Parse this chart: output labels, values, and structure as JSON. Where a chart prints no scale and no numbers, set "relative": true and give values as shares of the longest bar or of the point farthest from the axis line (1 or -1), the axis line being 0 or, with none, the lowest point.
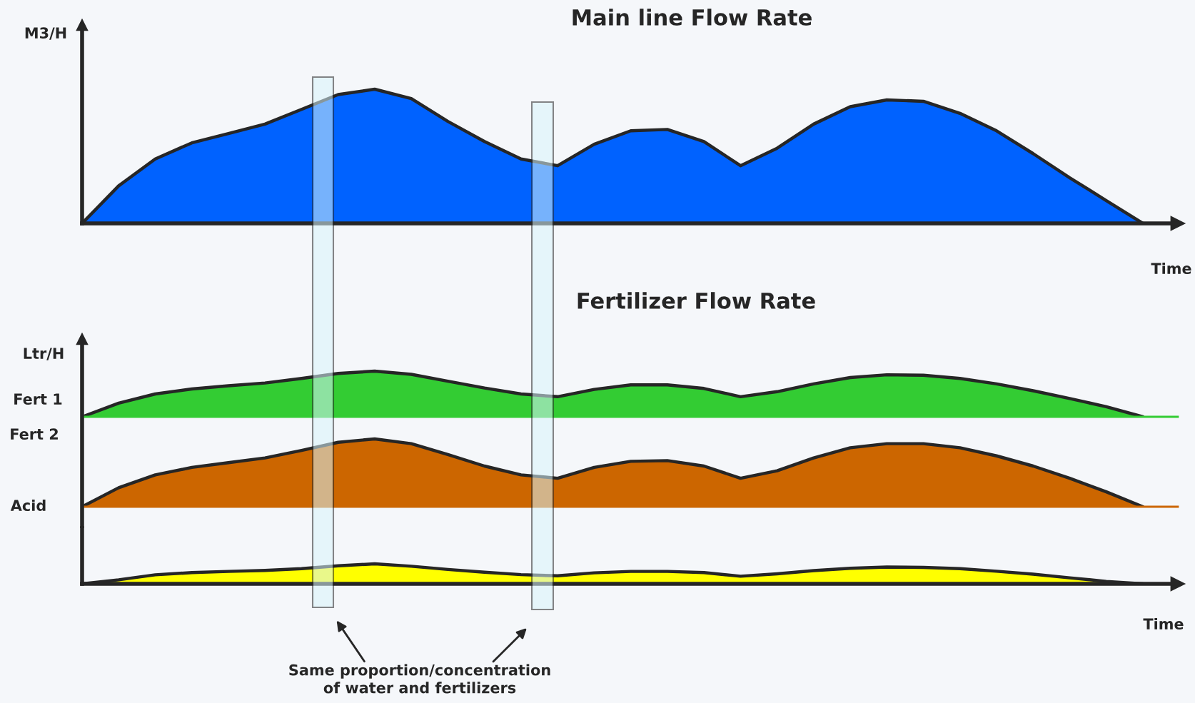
{
  "chart_data": [
    {
      "type": "area",
      "title": "Main line Flow Rate",
      "ylabel": "M3/H",
      "xlabel": "Time",
      "relative": true,
      "categories": [
        null,
        null,
        null,
        null,
        null,
        null,
        null,
        null,
        null,
        null,
        null,
        null,
        null,
        null,
        null,
        null,
        null,
        null,
        null,
        null,
        null,
        null,
        null,
        null,
        null,
        null,
        null,
        null,
        null,
        null
      ],
      "series": [
        {
          "color": "#0062ff",
          "values": [
            0,
            0.28,
            0.48,
            0.6,
            0.67,
            0.74,
            0.85,
            0.96,
            1.0,
            0.93,
            0.76,
            0.61,
            0.48,
            0.43,
            0.59,
            0.69,
            0.7,
            0.61,
            0.43,
            0.56,
            0.74,
            0.87,
            0.92,
            0.91,
            0.82,
            0.69,
            0.52,
            0.34,
            0.17,
            0
          ]
        }
      ]
    },
    {
      "type": "area",
      "title": "Fertilizer Flow Rate",
      "ylabel": "Ltr/H",
      "relative": true,
      "categories": [
        null,
        null,
        null,
        null,
        null,
        null,
        null,
        null,
        null,
        null,
        null,
        null,
        null,
        null,
        null,
        null,
        null,
        null,
        null,
        null,
        null,
        null,
        null,
        null,
        null,
        null,
        null,
        null,
        null,
        null
      ],
      "series": [
        {
          "name": "Fert 1",
          "color": "#33cc33",
          "values": [
            0,
            0.3,
            0.5,
            0.61,
            0.68,
            0.74,
            0.84,
            0.95,
            1,
            0.93,
            0.78,
            0.63,
            0.5,
            0.44,
            0.6,
            0.7,
            0.7,
            0.62,
            0.44,
            0.55,
            0.72,
            0.86,
            0.92,
            0.91,
            0.84,
            0.72,
            0.57,
            0.4,
            0.22,
            0
          ]
        }
      ]
    },
    {
      "type": "area",
      "relative": true,
      "categories": [
        null,
        null,
        null,
        null,
        null,
        null,
        null,
        null,
        null,
        null,
        null,
        null,
        null,
        null,
        null,
        null,
        null,
        null,
        null,
        null,
        null,
        null,
        null,
        null,
        null,
        null,
        null,
        null,
        null,
        null
      ],
      "series": [
        {
          "name": "Fert 2",
          "color": "#cc6600",
          "values": [
            0,
            0.28,
            0.47,
            0.58,
            0.65,
            0.72,
            0.83,
            0.95,
            1,
            0.93,
            0.77,
            0.6,
            0.47,
            0.42,
            0.58,
            0.67,
            0.68,
            0.6,
            0.42,
            0.53,
            0.72,
            0.87,
            0.93,
            0.93,
            0.87,
            0.75,
            0.6,
            0.42,
            0.22,
            0
          ]
        }
      ]
    },
    {
      "type": "area",
      "xlabel": "Time",
      "relative": true,
      "annotations": [
        "Same proportion/concentration\nof water and fertilizers"
      ],
      "categories": [
        null,
        null,
        null,
        null,
        null,
        null,
        null,
        null,
        null,
        null,
        null,
        null,
        null,
        null,
        null,
        null,
        null,
        null,
        null,
        null,
        null,
        null,
        null,
        null,
        null,
        null,
        null,
        null,
        null,
        null
      ],
      "series": [
        {
          "name": "Acid",
          "color": "#ffff00",
          "values": [
            0,
            0.2,
            0.45,
            0.56,
            0.62,
            0.67,
            0.76,
            0.9,
            1,
            0.88,
            0.72,
            0.58,
            0.46,
            0.4,
            0.55,
            0.62,
            0.62,
            0.56,
            0.38,
            0.5,
            0.66,
            0.78,
            0.84,
            0.82,
            0.76,
            0.63,
            0.48,
            0.3,
            0.12,
            0
          ]
        }
      ]
    }
  ]
}
